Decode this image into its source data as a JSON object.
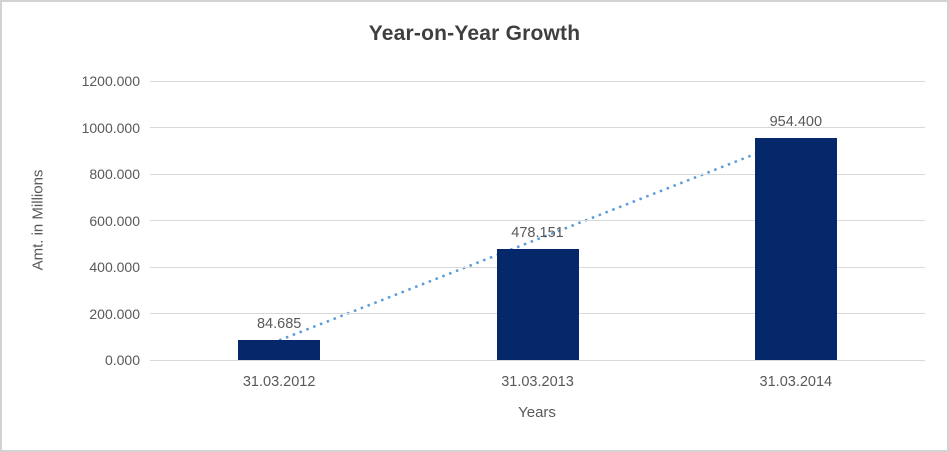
{
  "window": {
    "background": "#ffffff",
    "border_color": "#d2d2d2"
  },
  "chart_data": {
    "type": "bar",
    "title": "Year-on-Year Growth",
    "xlabel": "Years",
    "ylabel": "Amt. in Millions",
    "categories": [
      "31.03.2012",
      "31.03.2013",
      "31.03.2014"
    ],
    "values": [
      84685,
      478151,
      954400
    ],
    "data_labels": [
      "84.685",
      "478.151",
      "954.400"
    ],
    "ylim": [
      0,
      1200000
    ],
    "ytick_step": 200000,
    "ytick_labels": [
      "0.000",
      "200.000",
      "400.000",
      "600.000",
      "800.000",
      "1000.000",
      "1200.000"
    ],
    "grid": true,
    "legend": "none",
    "trendline": {
      "type": "linear",
      "style": "dotted",
      "from_value": 84685,
      "to_value": 954400
    },
    "colors": {
      "bar": "#04286a",
      "trendline": "#5b9bd5",
      "gridline": "#d9d9d9",
      "title_text": "#3f3f3f",
      "axis_text": "#595959"
    }
  }
}
